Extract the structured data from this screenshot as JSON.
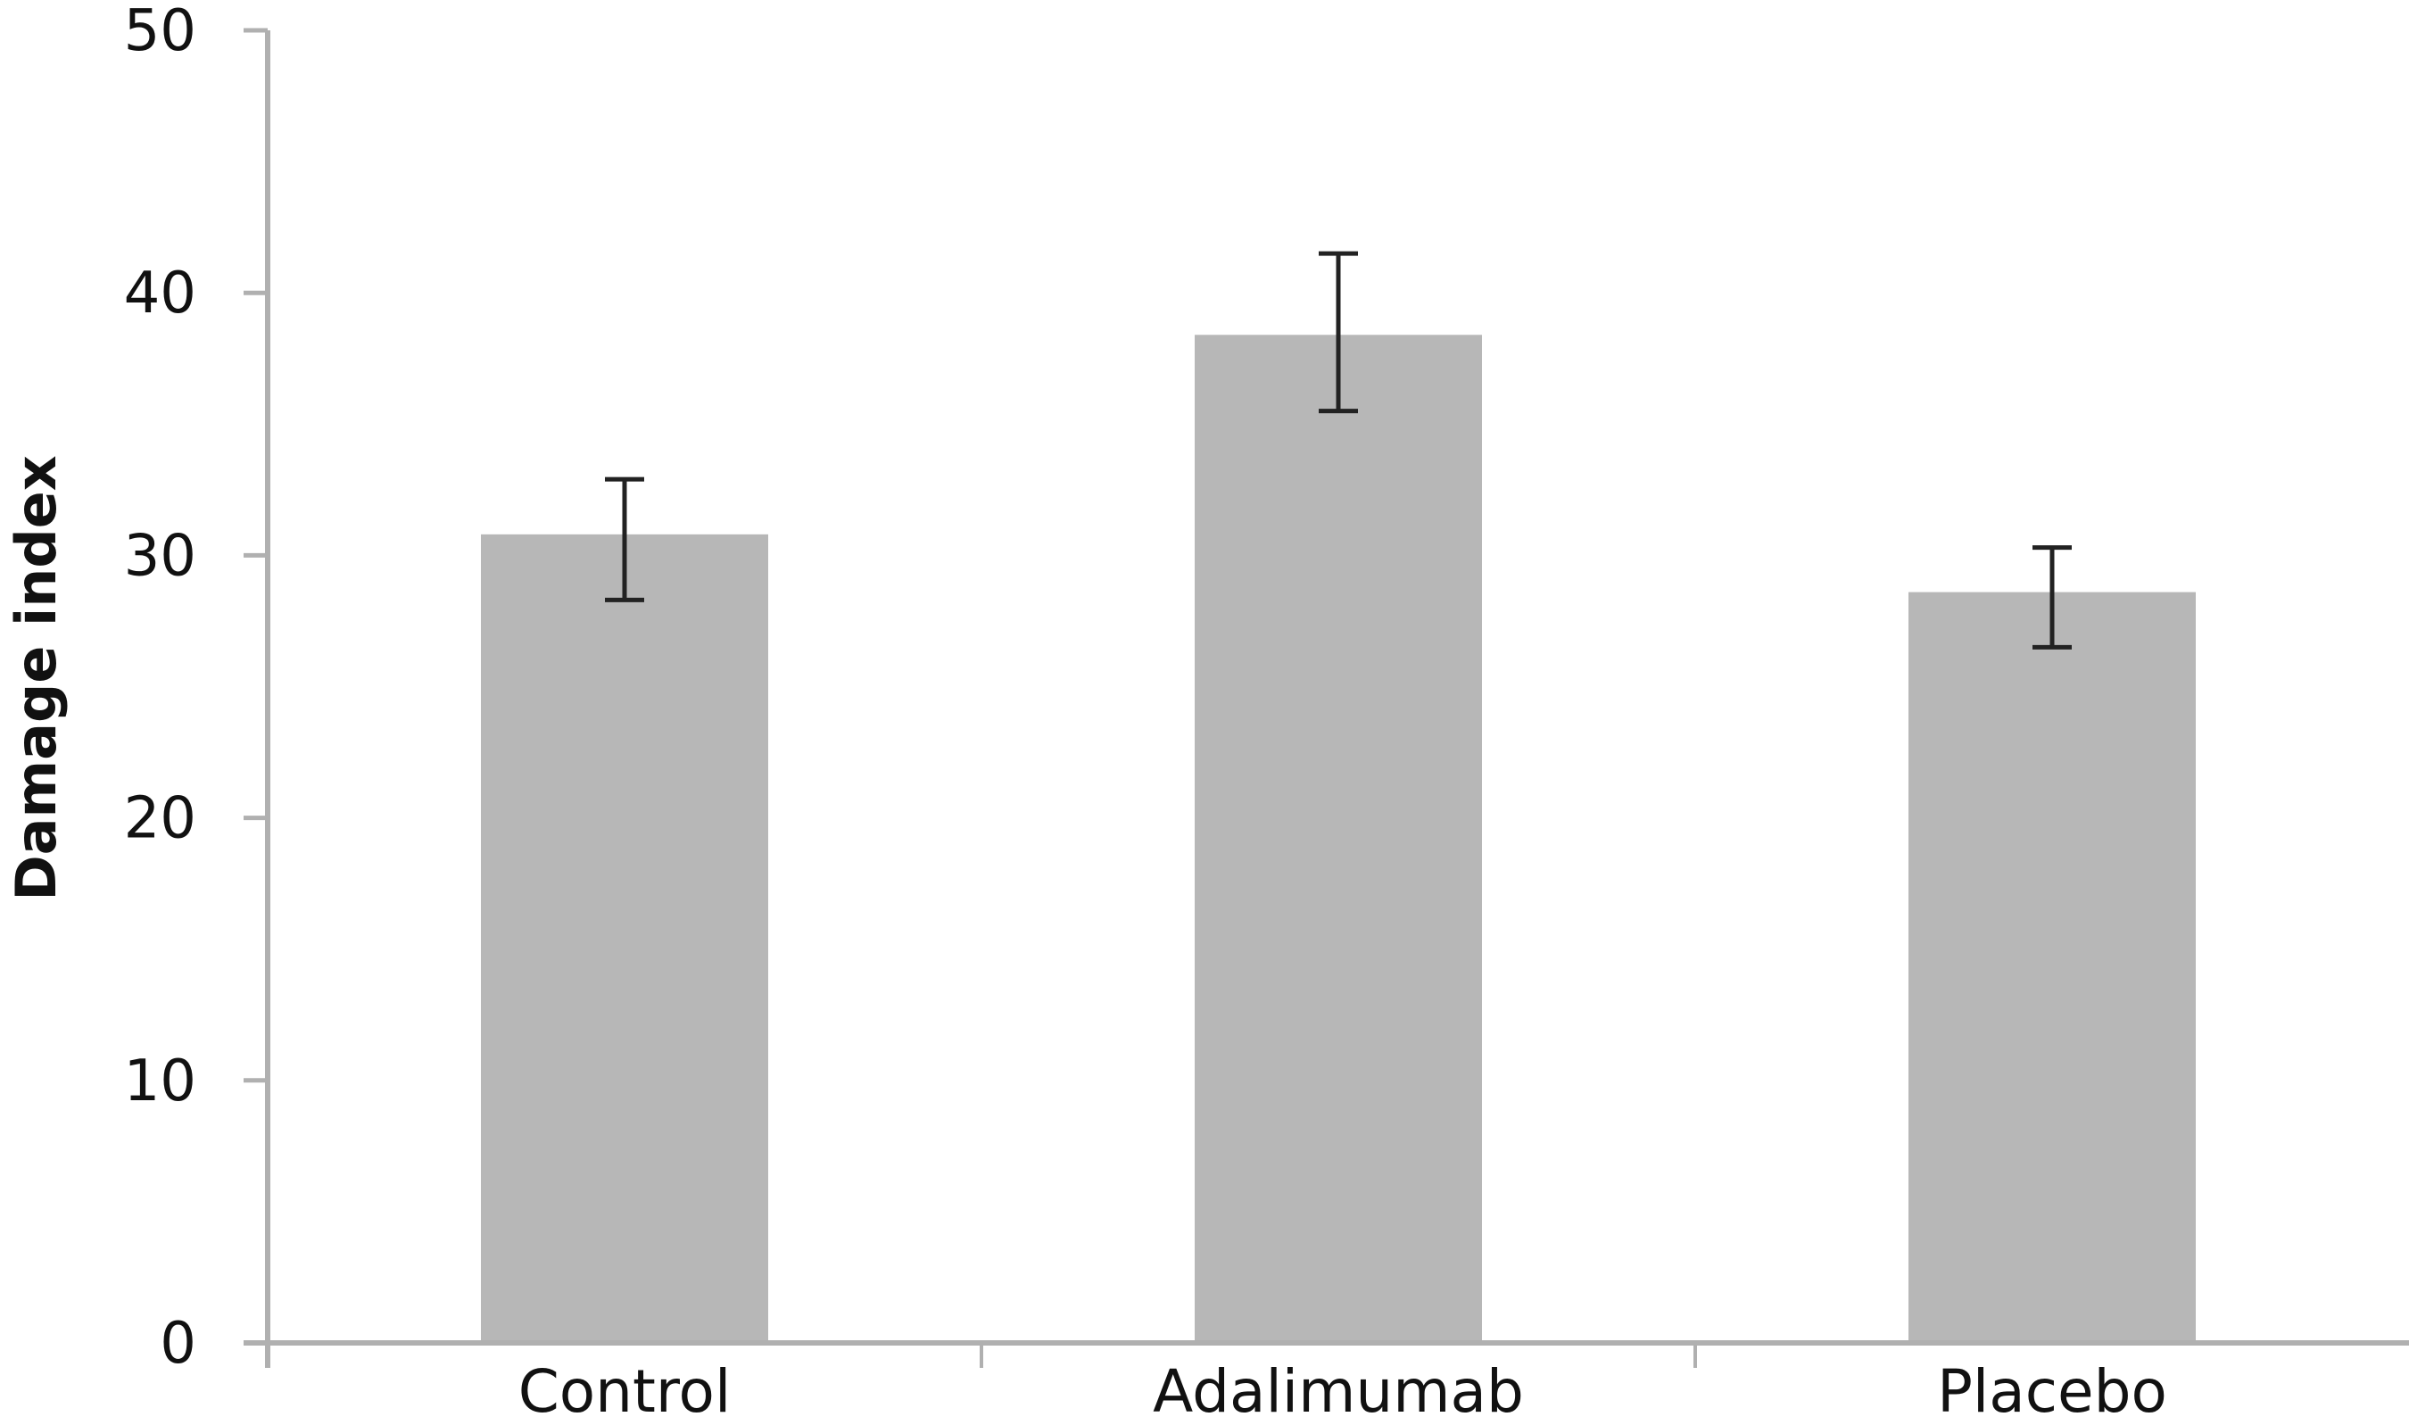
{
  "chart_data": {
    "type": "bar",
    "title": "",
    "xlabel": "",
    "ylabel": "Damage index",
    "ylim": [
      0,
      50
    ],
    "yticks": [
      "0",
      "10",
      "20",
      "30",
      "40",
      "50"
    ],
    "categories": [
      "Control",
      "Adalimumab",
      "Placebo"
    ],
    "values": [
      30.8,
      38.4,
      28.6
    ],
    "error_low": [
      28.3,
      35.5,
      26.5
    ],
    "error_high": [
      32.9,
      41.5,
      30.3
    ],
    "grid": false,
    "legend": "none",
    "colors": {
      "bar": "#b7b7b7",
      "axis": "#b0b0b0",
      "error": "#222222"
    }
  }
}
